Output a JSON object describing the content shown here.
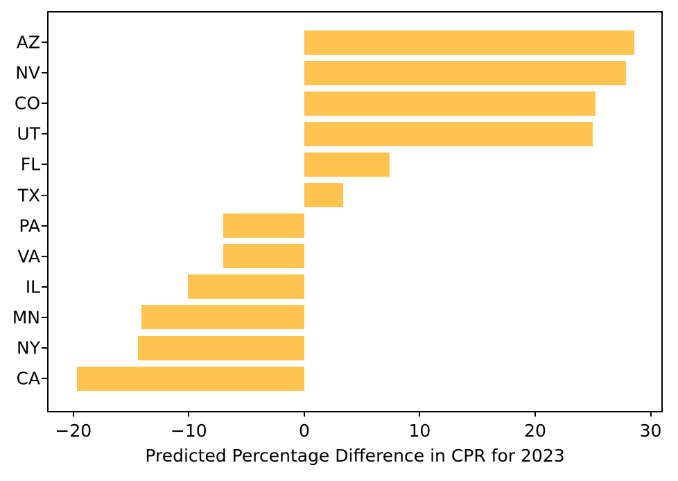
{
  "chart_data": {
    "type": "bar",
    "orientation": "horizontal",
    "title": "",
    "xlabel": "Predicted Percentage Difference in CPR for 2023",
    "ylabel": "",
    "categories": [
      "AZ",
      "NV",
      "CO",
      "UT",
      "FL",
      "TX",
      "PA",
      "VA",
      "IL",
      "MN",
      "NY",
      "CA"
    ],
    "values": [
      28.6,
      27.9,
      25.2,
      25.0,
      7.4,
      3.4,
      -7.0,
      -7.0,
      -10.1,
      -14.1,
      -14.4,
      -19.7
    ],
    "x_ticks": [
      -20,
      -10,
      0,
      10,
      20,
      30
    ],
    "x_tick_labels": [
      "−20",
      "−10",
      "0",
      "10",
      "20",
      "30"
    ],
    "xlim": [
      -22.15,
      30.93
    ],
    "grid": false,
    "legend": null,
    "bar_color": "#FEC44F"
  },
  "colors": {
    "bar": "#FEC44F",
    "axis": "#000000",
    "text": "#000000",
    "background": "#FFFFFF"
  }
}
